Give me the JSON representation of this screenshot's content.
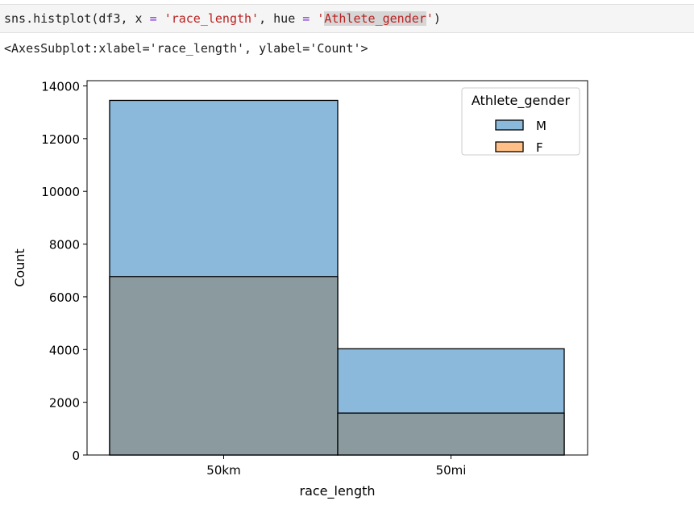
{
  "cell": {
    "code_prefix": "sns.histplot(df3, x ",
    "eq1": "=",
    "arg_x": "'race_length'",
    "sep_hue": ", hue ",
    "eq2": "=",
    "arg_hue_quote_open": "'",
    "arg_hue_name": "Athlete_gender",
    "arg_hue_quote_close": "'",
    "code_suffix": ")"
  },
  "output": {
    "repr": "<AxesSubplot:xlabel='race_length', ylabel='Count'>"
  },
  "colors": {
    "male": "#1f77b4",
    "female": "#ff7f0e",
    "male_fill": "#8ab9db",
    "overlap_fill": "#8a9a9e",
    "female_legend_fill": "#ffbf86"
  },
  "chart_data": {
    "type": "bar",
    "title": "",
    "xlabel": "race_length",
    "ylabel": "Count",
    "categories": [
      "50km",
      "50mi"
    ],
    "series": [
      {
        "name": "M",
        "values": [
          13450,
          4030
        ]
      },
      {
        "name": "F",
        "values": [
          6770,
          1590
        ]
      }
    ],
    "ylim": [
      0,
      14000
    ],
    "yticks": [
      0,
      2000,
      4000,
      6000,
      8000,
      10000,
      12000,
      14000
    ],
    "legend": {
      "title": "Athlete_gender",
      "placement": "top-right",
      "entries": [
        "M",
        "F"
      ]
    },
    "grid": false
  }
}
